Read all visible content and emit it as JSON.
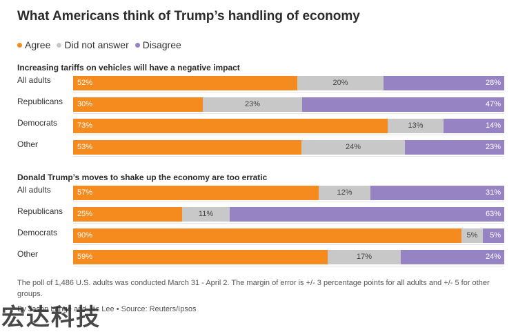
{
  "title": "What Americans think of Trump’s handling of economy",
  "legend": [
    {
      "label": "Agree",
      "color": "#F58A1F"
    },
    {
      "label": "Did not answer",
      "color": "#C8C8C8"
    },
    {
      "label": "Disagree",
      "color": "#9583C3"
    }
  ],
  "chart_data": [
    {
      "type": "bar",
      "orientation": "horizontal",
      "stacked": true,
      "title": "Increasing tariffs on vehicles will have a negative impact",
      "categories": [
        "All adults",
        "Republicans",
        "Democrats",
        "Other"
      ],
      "series": [
        {
          "name": "Agree",
          "values": [
            52,
            30,
            73,
            53
          ]
        },
        {
          "name": "Did not answer",
          "values": [
            20,
            23,
            13,
            24
          ]
        },
        {
          "name": "Disagree",
          "values": [
            28,
            47,
            14,
            23
          ]
        }
      ],
      "labels": [
        [
          "52%",
          "20%",
          "28%"
        ],
        [
          "30%",
          "23%",
          "47%"
        ],
        [
          "73%",
          "13%",
          "14%"
        ],
        [
          "53%",
          "24%",
          "23%"
        ]
      ]
    },
    {
      "type": "bar",
      "orientation": "horizontal",
      "stacked": true,
      "title": "Donald Trump’s moves to shake up the economy are too erratic",
      "categories": [
        "All adults",
        "Republicans",
        "Democrats",
        "Other"
      ],
      "series": [
        {
          "name": "Agree",
          "values": [
            57,
            25,
            90,
            59
          ]
        },
        {
          "name": "Did not answer",
          "values": [
            12,
            11,
            5,
            17
          ]
        },
        {
          "name": "Disagree",
          "values": [
            31,
            63,
            5,
            24
          ]
        }
      ],
      "labels": [
        [
          "57%",
          "12%",
          "31%"
        ],
        [
          "25%",
          "11%",
          "63%"
        ],
        [
          "90%",
          "5%",
          "5%"
        ],
        [
          "59%",
          "17%",
          "24%"
        ]
      ]
    }
  ],
  "note": "The poll of 1,486 U.S. adults was conducted March 31 - April 2. The margin of error is +/- 3 percentage points for all adults and +/- 5 for other groups.",
  "byline": "By Jason Lange and Jiis Lee • Source: Reuters/Ipsos",
  "watermark": "宏达科技"
}
